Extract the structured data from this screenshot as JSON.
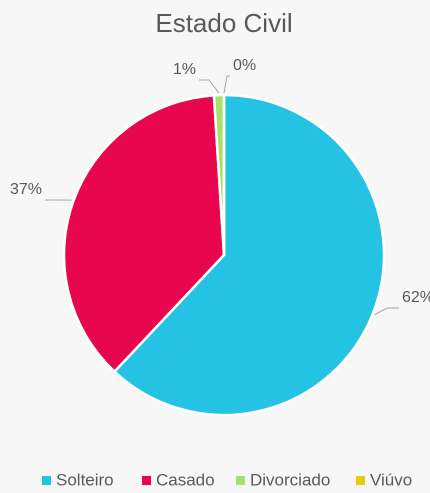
{
  "chart_data": {
    "type": "pie",
    "title": "Estado Civil",
    "categories": [
      "Solteiro",
      "Casado",
      "Divorciado",
      "Viúvo"
    ],
    "values": [
      62,
      37,
      1,
      0
    ],
    "value_labels": [
      "62%",
      "37%",
      "1%",
      "0%"
    ],
    "colors": [
      "#25c3e3",
      "#e8064f",
      "#a8e06b",
      "#e6cc00"
    ],
    "legend": "bottom"
  }
}
